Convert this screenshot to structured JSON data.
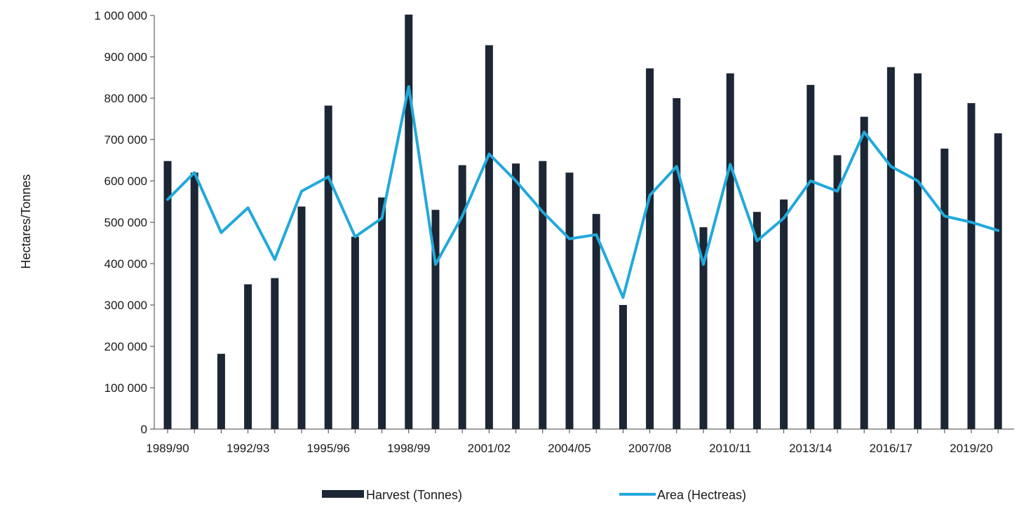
{
  "chart_data": {
    "type": "bar",
    "ylabel": "Hectares/Tonnes",
    "xlabel": "",
    "ylim": [
      0,
      1000000
    ],
    "y_ticks": [
      0,
      100000,
      200000,
      300000,
      400000,
      500000,
      600000,
      700000,
      800000,
      900000,
      1000000
    ],
    "y_tick_labels": [
      "0",
      "100 000",
      "200 000",
      "300 000",
      "400 000",
      "500 000",
      "600 000",
      "700 000",
      "800 000",
      "900 000",
      "1 000 000"
    ],
    "categories": [
      "1989/90",
      "1990/91",
      "1991/92",
      "1992/93",
      "1993/94",
      "1994/95",
      "1995/96",
      "1996/97",
      "1997/98",
      "1998/99",
      "1999/00",
      "2000/01",
      "2001/02",
      "2002/03",
      "2003/04",
      "2004/05",
      "2005/06",
      "2006/07",
      "2007/08",
      "2008/09",
      "2009/10",
      "2010/11",
      "2011/12",
      "2012/13",
      "2013/14",
      "2014/15",
      "2015/16",
      "2016/17",
      "2017/18",
      "2018/19",
      "2019/20",
      "2020/21"
    ],
    "x_tick_labels": [
      "1989/90",
      "1992/93",
      "1995/96",
      "1998/99",
      "2001/02",
      "2004/05",
      "2007/08",
      "2010/11",
      "2013/14",
      "2016/17",
      "2019/20"
    ],
    "series": [
      {
        "name": "Harvest (Tonnes)",
        "type": "bar",
        "color": "#1c2634",
        "values": [
          648000,
          620000,
          182000,
          350000,
          365000,
          538000,
          782000,
          465000,
          560000,
          1002000,
          530000,
          638000,
          928000,
          642000,
          648000,
          620000,
          520000,
          300000,
          872000,
          800000,
          488000,
          860000,
          525000,
          555000,
          832000,
          662000,
          755000,
          875000,
          860000,
          678000,
          788000,
          715000
        ]
      },
      {
        "name": "Area (Hectreas)",
        "type": "line",
        "color": "#21a9dc",
        "values": [
          555000,
          620000,
          475000,
          535000,
          410000,
          575000,
          610000,
          465000,
          510000,
          828000,
          398000,
          515000,
          665000,
          600000,
          525000,
          460000,
          470000,
          318000,
          565000,
          635000,
          398000,
          640000,
          455000,
          510000,
          600000,
          575000,
          718000,
          635000,
          600000,
          515000,
          500000,
          480000
        ]
      }
    ],
    "legend_position": "bottom",
    "grid": false
  }
}
